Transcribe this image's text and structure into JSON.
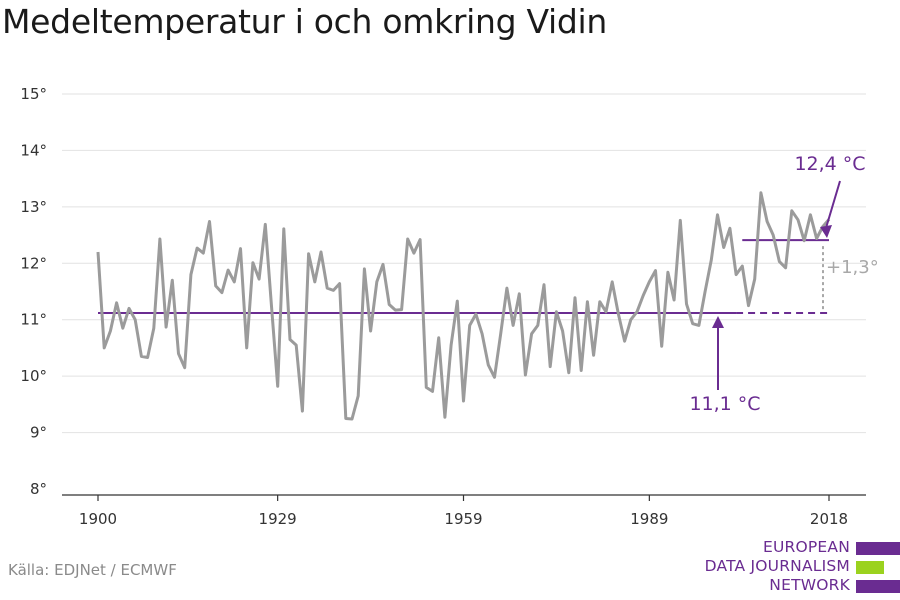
{
  "title": "Medeltemperatur i och omkring Vidin",
  "source": "Källa: EDJNet / ECMWF",
  "logo": {
    "line1": "EUROPEAN",
    "line2": "DATA JOURNALISM",
    "line3": "NETWORK",
    "colors": {
      "primary": "#6a2c91",
      "accent": "#9bd21e"
    }
  },
  "colors": {
    "series": "#9b9b9b",
    "reference": "#6a2c91",
    "diff": "#a8a8a8",
    "grid": "#e2e2e2",
    "axis": "#333333"
  },
  "chart_data": {
    "type": "line",
    "title": "Medeltemperatur i och omkring Vidin",
    "xlabel": "",
    "ylabel": "",
    "xlim": [
      1900,
      2018
    ],
    "ylim": [
      8,
      15
    ],
    "x_ticks": [
      1900,
      1929,
      1959,
      1989,
      2018
    ],
    "y_ticks": [
      {
        "value": 8,
        "label": "8°"
      },
      {
        "value": 9,
        "label": "9°"
      },
      {
        "value": 10,
        "label": "10°"
      },
      {
        "value": 11,
        "label": "11°"
      },
      {
        "value": 12,
        "label": "12°"
      },
      {
        "value": 13,
        "label": "13°"
      },
      {
        "value": 14,
        "label": "14°"
      },
      {
        "value": 15,
        "label": "15°"
      }
    ],
    "grid": true,
    "x": [
      1900,
      1901,
      1902,
      1903,
      1904,
      1905,
      1906,
      1907,
      1908,
      1909,
      1910,
      1911,
      1912,
      1913,
      1914,
      1915,
      1916,
      1917,
      1918,
      1919,
      1920,
      1921,
      1922,
      1923,
      1924,
      1925,
      1926,
      1927,
      1928,
      1929,
      1930,
      1931,
      1932,
      1933,
      1934,
      1935,
      1936,
      1937,
      1938,
      1939,
      1940,
      1941,
      1942,
      1943,
      1944,
      1945,
      1946,
      1947,
      1948,
      1949,
      1950,
      1951,
      1952,
      1953,
      1954,
      1955,
      1956,
      1957,
      1958,
      1959,
      1960,
      1961,
      1962,
      1963,
      1964,
      1965,
      1966,
      1967,
      1968,
      1969,
      1970,
      1971,
      1972,
      1973,
      1974,
      1975,
      1976,
      1977,
      1978,
      1979,
      1980,
      1981,
      1982,
      1983,
      1984,
      1985,
      1986,
      1987,
      1988,
      1989,
      1990,
      1991,
      1992,
      1993,
      1994,
      1995,
      1996,
      1997,
      1998,
      1999,
      2000,
      2001,
      2002,
      2003,
      2004,
      2005,
      2006,
      2007,
      2008,
      2009,
      2010,
      2011,
      2012,
      2013,
      2014,
      2015,
      2016,
      2017,
      2018
    ],
    "series": [
      {
        "values": [
          12.2,
          10.5,
          10.8,
          11.3,
          10.85,
          11.2,
          11.0,
          10.35,
          10.33,
          10.85,
          12.43,
          10.87,
          11.7,
          10.4,
          10.15,
          11.8,
          12.27,
          12.18,
          12.74,
          11.6,
          11.48,
          11.88,
          11.67,
          12.26,
          10.5,
          12.01,
          11.72,
          12.69,
          11.24,
          9.82,
          12.61,
          10.65,
          10.55,
          9.38,
          12.17,
          11.67,
          12.2,
          11.56,
          11.52,
          11.64,
          9.25,
          9.24,
          9.65,
          11.9,
          10.8,
          11.67,
          11.98,
          11.27,
          11.17,
          11.18,
          12.43,
          12.18,
          12.42,
          9.8,
          9.73,
          10.68,
          9.27,
          10.55,
          11.33,
          9.56,
          10.9,
          11.1,
          10.75,
          10.2,
          9.98,
          10.75,
          11.56,
          10.9,
          11.46,
          10.02,
          10.75,
          10.9,
          11.62,
          10.17,
          11.14,
          10.8,
          10.06,
          11.39,
          10.1,
          11.32,
          10.37,
          11.32,
          11.14,
          11.67,
          11.1,
          10.62,
          11.0,
          11.14,
          11.43,
          11.67,
          11.87,
          10.53,
          11.84,
          11.35,
          12.76,
          11.28,
          10.93,
          10.9,
          11.5,
          12.06,
          12.86,
          12.28,
          12.62,
          11.8,
          11.95,
          11.25,
          11.72,
          13.25,
          12.74,
          12.5,
          12.03,
          11.92,
          12.93,
          12.77,
          12.4,
          12.86,
          12.44,
          12.65,
          12.78
        ]
      }
    ],
    "reference_lines": [
      {
        "label": "11,1 °C",
        "value": 11.12,
        "x_start": 1900,
        "x_end": 2003,
        "dashed_to": 2018
      },
      {
        "label": "12,4 °C",
        "value": 12.41,
        "x_start": 2004,
        "x_end": 2018
      }
    ],
    "difference_label": "+1,3°"
  }
}
